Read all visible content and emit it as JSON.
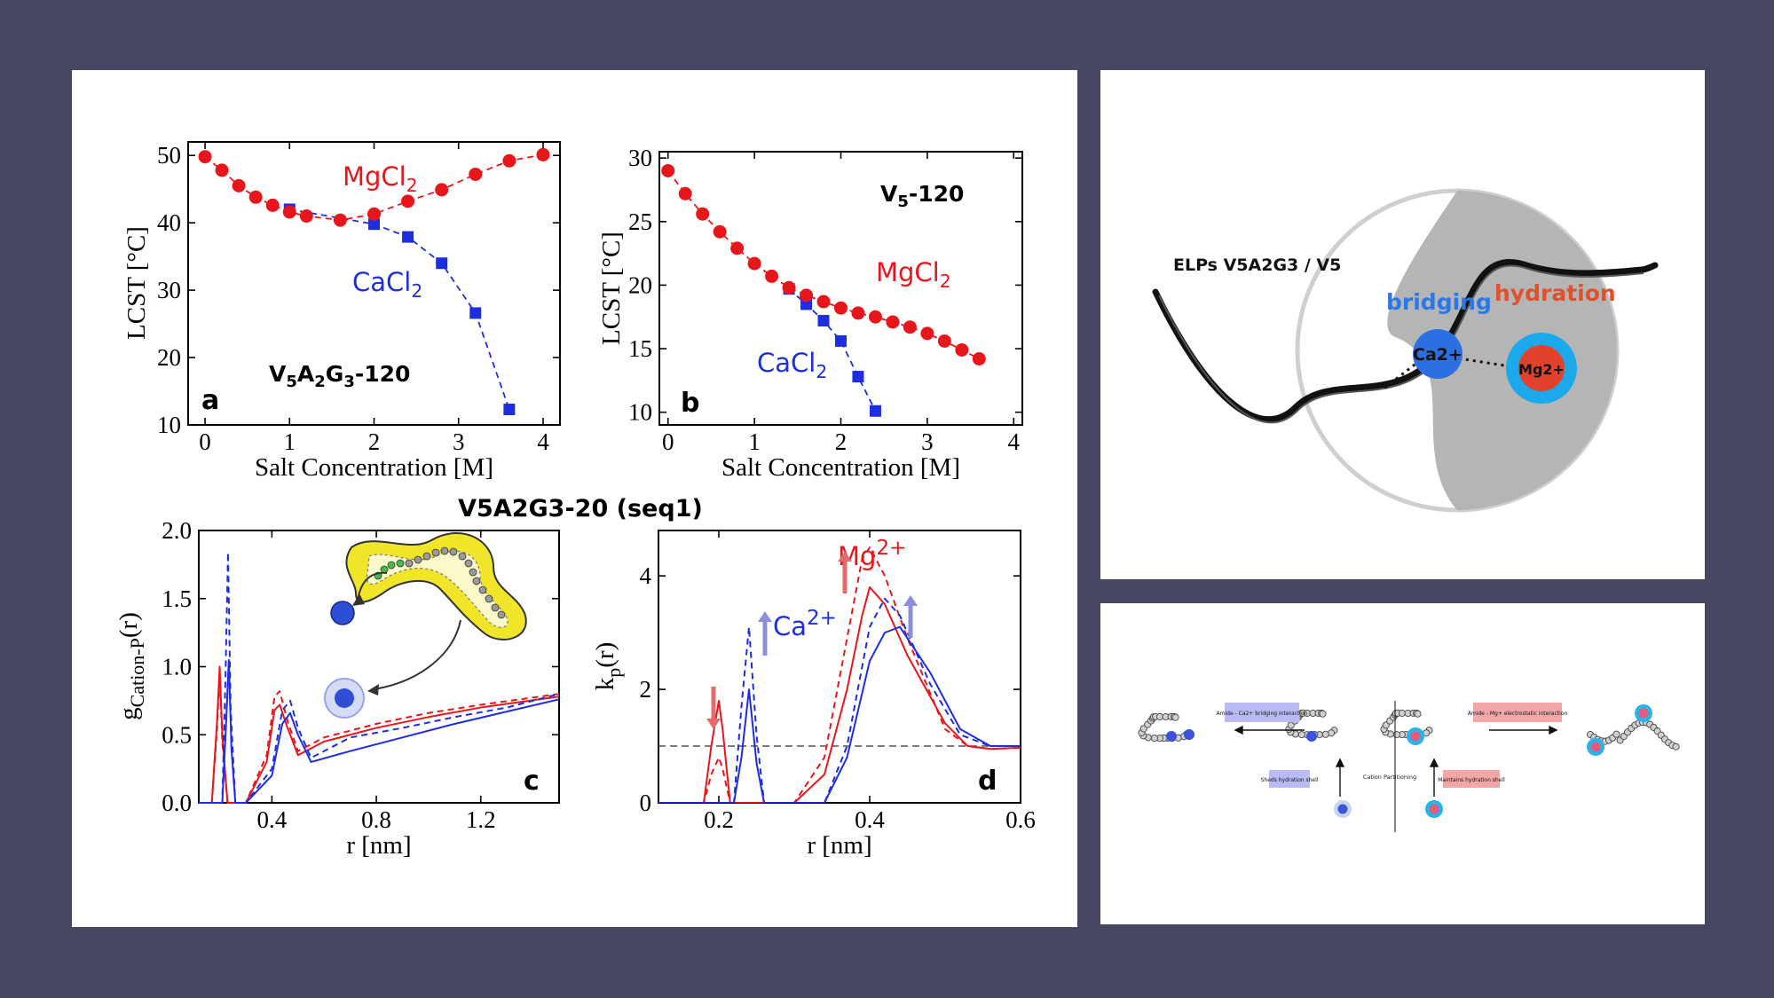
{
  "chart_data": [
    {
      "type": "scatter",
      "panel_letter": "a",
      "title": "V5A2G3-120",
      "xlabel": "Salt Concentration [M]",
      "ylabel": "LCST [°C]",
      "xlim": [
        -0.2,
        4.2
      ],
      "ylim": [
        10,
        52
      ],
      "xticks": [
        0,
        1,
        2,
        3,
        4
      ],
      "yticks": [
        10,
        20,
        30,
        40,
        50
      ],
      "series": [
        {
          "name": "MgCl2",
          "color": "#e8161b",
          "marker": "circle",
          "x": [
            0,
            0.2,
            0.4,
            0.6,
            0.8,
            1.0,
            1.2,
            1.6,
            2.0,
            2.4,
            2.8,
            3.2,
            3.6,
            4.0
          ],
          "y": [
            49.8,
            47.8,
            45.5,
            43.8,
            42.6,
            41.6,
            41.0,
            40.4,
            41.3,
            43.2,
            44.9,
            47.2,
            49.2,
            50.1
          ]
        },
        {
          "name": "CaCl2",
          "color": "#1d2ee0",
          "marker": "square",
          "x": [
            1.0,
            2.0,
            2.4,
            2.8,
            3.2,
            3.6
          ],
          "y": [
            42.0,
            39.8,
            37.9,
            34.0,
            26.6,
            12.3
          ]
        }
      ]
    },
    {
      "type": "scatter",
      "panel_letter": "b",
      "title": "V5-120",
      "xlabel": "Salt Concentration [M]",
      "ylabel": "LCST [°C]",
      "xlim": [
        -0.1,
        4.1
      ],
      "ylim": [
        9,
        30.5
      ],
      "xticks": [
        0,
        1,
        2,
        3,
        4
      ],
      "yticks": [
        10,
        15,
        20,
        25,
        30
      ],
      "series": [
        {
          "name": "MgCl2",
          "color": "#e8161b",
          "marker": "circle",
          "x": [
            0,
            0.2,
            0.4,
            0.6,
            0.8,
            1.0,
            1.2,
            1.4,
            1.6,
            1.8,
            2.0,
            2.2,
            2.4,
            2.6,
            2.8,
            3.0,
            3.2,
            3.4,
            3.6
          ],
          "y": [
            29.0,
            27.2,
            25.6,
            24.2,
            22.9,
            21.7,
            20.7,
            19.8,
            19.2,
            18.7,
            18.2,
            17.8,
            17.5,
            17.1,
            16.7,
            16.2,
            15.6,
            14.9,
            14.2
          ]
        },
        {
          "name": "CaCl2",
          "color": "#1d2ee0",
          "marker": "square",
          "x": [
            1.4,
            1.6,
            1.8,
            2.0,
            2.2,
            2.4
          ],
          "y": [
            19.7,
            18.5,
            17.2,
            15.6,
            12.8,
            10.1
          ]
        }
      ]
    },
    {
      "type": "line",
      "panel_letter": "c",
      "xlabel": "r [nm]",
      "ylabel": "gCation-P(r)",
      "xlim": [
        0.12,
        1.5
      ],
      "ylim": [
        0,
        2.0
      ],
      "xticks": [
        0.4,
        0.8,
        1.2
      ],
      "yticks": [
        0.0,
        0.5,
        1.0,
        1.5,
        2.0
      ],
      "series": [
        {
          "name": "Mg2+ solid",
          "color": "#e8161b",
          "dash": false,
          "x": [
            0.12,
            0.17,
            0.19,
            0.2,
            0.21,
            0.23,
            0.3,
            0.38,
            0.41,
            0.43,
            0.46,
            0.5,
            0.6,
            0.8,
            1.0,
            1.2,
            1.5
          ],
          "y": [
            0,
            0,
            0.6,
            1.0,
            0.5,
            0,
            0,
            0.3,
            0.68,
            0.72,
            0.55,
            0.35,
            0.45,
            0.55,
            0.63,
            0.7,
            0.78
          ]
        },
        {
          "name": "Mg2+ dashed",
          "color": "#e8161b",
          "dash": true,
          "x": [
            0.12,
            0.17,
            0.19,
            0.2,
            0.21,
            0.23,
            0.3,
            0.38,
            0.41,
            0.43,
            0.46,
            0.5,
            0.6,
            0.8,
            1.0,
            1.2,
            1.5
          ],
          "y": [
            0,
            0,
            0.55,
            0.95,
            0.45,
            0,
            0,
            0.35,
            0.78,
            0.82,
            0.6,
            0.38,
            0.48,
            0.58,
            0.66,
            0.72,
            0.8
          ]
        },
        {
          "name": "Ca2+ solid",
          "color": "#1d2ee0",
          "dash": false,
          "x": [
            0.12,
            0.21,
            0.225,
            0.235,
            0.245,
            0.26,
            0.3,
            0.4,
            0.44,
            0.47,
            0.5,
            0.55,
            0.7,
            0.9,
            1.1,
            1.3,
            1.5
          ],
          "y": [
            0,
            0,
            0.6,
            1.05,
            0.4,
            0,
            0,
            0.2,
            0.58,
            0.66,
            0.5,
            0.3,
            0.38,
            0.48,
            0.58,
            0.67,
            0.76
          ]
        },
        {
          "name": "Ca2+ dashed",
          "color": "#1d2ee0",
          "dash": true,
          "x": [
            0.12,
            0.21,
            0.222,
            0.232,
            0.242,
            0.26,
            0.3,
            0.4,
            0.44,
            0.47,
            0.5,
            0.55,
            0.7,
            0.9,
            1.1,
            1.3,
            1.5
          ],
          "y": [
            0,
            0,
            0.9,
            1.84,
            0.7,
            0,
            0,
            0.25,
            0.68,
            0.75,
            0.55,
            0.33,
            0.48,
            0.55,
            0.63,
            0.7,
            0.8
          ]
        }
      ]
    },
    {
      "type": "line",
      "panel_letter": "d",
      "xlabel": "r [nm]",
      "ylabel": "kp(r)",
      "xlim": [
        0.12,
        0.6
      ],
      "ylim": [
        0,
        4.8
      ],
      "xticks": [
        0.2,
        0.4,
        0.6
      ],
      "yticks": [
        0,
        2,
        4
      ],
      "reference_line": 1.0,
      "series": [
        {
          "name": "Mg2+ solid",
          "color": "#e8161b",
          "dash": false,
          "x": [
            0.12,
            0.18,
            0.19,
            0.2,
            0.205,
            0.215,
            0.23,
            0.3,
            0.34,
            0.37,
            0.39,
            0.4,
            0.42,
            0.45,
            0.5,
            0.53,
            0.56,
            0.6
          ],
          "y": [
            0,
            0,
            1.0,
            1.8,
            1.3,
            0,
            0,
            0,
            0.5,
            2.0,
            3.3,
            3.8,
            3.5,
            2.6,
            1.4,
            1.0,
            0.95,
            0.97
          ]
        },
        {
          "name": "Mg2+ dashed",
          "color": "#e8161b",
          "dash": true,
          "x": [
            0.12,
            0.18,
            0.19,
            0.2,
            0.205,
            0.215,
            0.23,
            0.3,
            0.34,
            0.37,
            0.39,
            0.4,
            0.42,
            0.45,
            0.5,
            0.53,
            0.56,
            0.6
          ],
          "y": [
            0,
            0,
            0.5,
            0.8,
            0.6,
            0,
            0,
            0,
            0.8,
            2.9,
            4.3,
            4.5,
            4.0,
            2.9,
            1.3,
            1.0,
            0.95,
            0.97
          ]
        },
        {
          "name": "Ca2+ solid",
          "color": "#1d2ee0",
          "dash": false,
          "x": [
            0.12,
            0.22,
            0.23,
            0.24,
            0.25,
            0.26,
            0.3,
            0.34,
            0.37,
            0.4,
            0.42,
            0.44,
            0.48,
            0.52,
            0.56,
            0.6
          ],
          "y": [
            0,
            0,
            0.8,
            2.0,
            0.7,
            0,
            0,
            0,
            0.8,
            2.5,
            3.0,
            3.1,
            2.3,
            1.3,
            1.0,
            1.0
          ]
        },
        {
          "name": "Ca2+ dashed",
          "color": "#1d2ee0",
          "dash": true,
          "x": [
            0.12,
            0.22,
            0.23,
            0.24,
            0.25,
            0.26,
            0.3,
            0.34,
            0.37,
            0.4,
            0.42,
            0.44,
            0.48,
            0.52,
            0.56,
            0.6
          ],
          "y": [
            0,
            0,
            1.7,
            3.1,
            1.2,
            0,
            0,
            0,
            1.0,
            3.1,
            3.6,
            3.3,
            2.1,
            1.2,
            1.0,
            1.0
          ]
        }
      ]
    }
  ],
  "figure": {
    "labels": {
      "mgcl2": "MgCl2",
      "cacl2": "CaCl2",
      "mg_ion": "Mg2+",
      "ca_ion": "Ca2+",
      "seq_title": "V5A2G3-20 (seq1)"
    },
    "colors": {
      "red": "#e8161b",
      "blue": "#1d2ee0",
      "bg": "#474763"
    }
  },
  "schematic_top": {
    "elps_label": "ELPs V5A2G3 / V5",
    "bridging": "bridging",
    "hydration": "hydration",
    "ca": "Ca2+",
    "mg": "Mg2+"
  },
  "schematic_bottom": {
    "bridging_box": "Amide - Ca2+ bridging interaction",
    "electrostatic_box": "Amide - Mg+ electrostatic interaction",
    "sheds": "Sheds hydration shell",
    "maintains": "Maintains hydration shell",
    "partitioning": "Cation Partitioning"
  }
}
